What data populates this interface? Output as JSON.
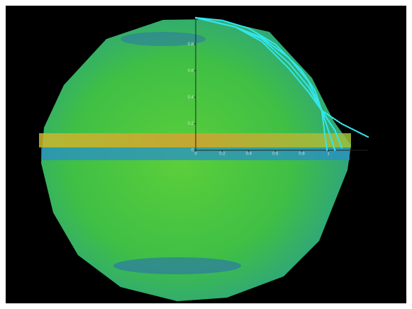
{
  "chart_data": {
    "type": "line",
    "xlim": [
      0,
      1.3
    ],
    "ylim": [
      0,
      1
    ],
    "xticks": [
      0,
      0.2,
      0.4,
      0.6,
      0.8,
      1
    ],
    "yticks": [
      0,
      0.2,
      0.4,
      0.6,
      0.8
    ],
    "series": [
      {
        "color": "#33e6f0",
        "style": "solid",
        "x": [
          0,
          0.2,
          0.4,
          0.6,
          0.8,
          0.9,
          0.95,
          0.99
        ],
        "values": [
          1,
          0.98,
          0.92,
          0.8,
          0.6,
          0.45,
          0.3,
          0
        ]
      },
      {
        "color": "#33e6f0",
        "style": "dotted",
        "x": [
          0,
          0.3,
          0.5,
          0.7,
          0.85,
          0.95,
          1.0,
          1.05
        ],
        "values": [
          1,
          0.93,
          0.82,
          0.62,
          0.44,
          0.3,
          0.15,
          0
        ]
      },
      {
        "color": "#33e6f0",
        "style": "dotted",
        "x": [
          0,
          0.3,
          0.5,
          0.7,
          0.85,
          0.95,
          1.05,
          1.1
        ],
        "values": [
          1,
          0.93,
          0.84,
          0.66,
          0.48,
          0.3,
          0.15,
          0.02
        ]
      },
      {
        "color": "#33e6f0",
        "style": "dotted",
        "x": [
          0,
          0.3,
          0.5,
          0.7,
          0.85,
          0.95,
          1.1,
          1.3
        ],
        "values": [
          1,
          0.93,
          0.85,
          0.7,
          0.52,
          0.3,
          0.2,
          0.1
        ]
      }
    ]
  }
}
